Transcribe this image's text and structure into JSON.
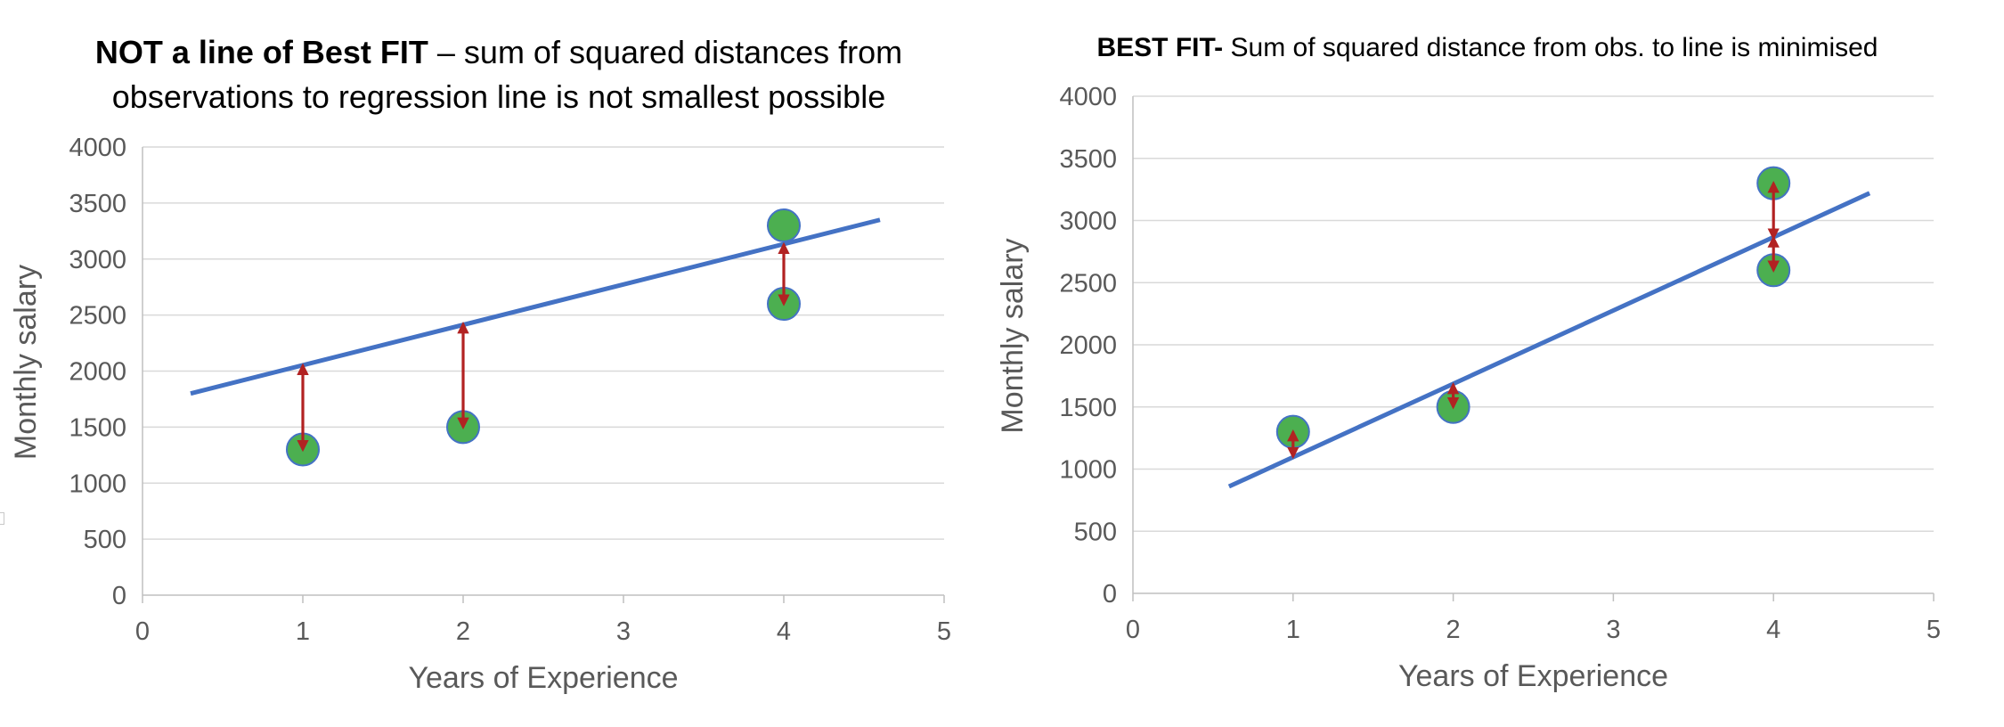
{
  "chart_data": [
    {
      "type": "scatter",
      "title_bold": "NOT a line of Best FIT",
      "title_rest": " – sum of squared distances from observations to regression line is not smallest possible",
      "xlabel": "Years of Experience",
      "ylabel": "Monthly salary",
      "xlim": [
        0,
        5
      ],
      "ylim": [
        0,
        4000
      ],
      "x_ticks": [
        0,
        1,
        2,
        3,
        4,
        5
      ],
      "y_ticks": [
        0,
        500,
        1000,
        1500,
        2000,
        2500,
        3000,
        3500,
        4000
      ],
      "grid": true,
      "points": [
        {
          "x": 1,
          "y": 1300
        },
        {
          "x": 2,
          "y": 1500
        },
        {
          "x": 4,
          "y": 3300
        },
        {
          "x": 4,
          "y": 2600
        }
      ],
      "line": {
        "x": [
          0.3,
          4.6
        ],
        "y": [
          1800,
          3350
        ]
      },
      "residuals": [
        {
          "x": 1,
          "y1": 1300,
          "y2": 2050
        },
        {
          "x": 2,
          "y1": 1500,
          "y2": 2420
        },
        {
          "x": 4,
          "y1": 2600,
          "y2": 3130
        }
      ],
      "colors": {
        "point": "#4CAF50",
        "point_edge": "#4472C4",
        "line": "#4472C4",
        "residual": "#B22222",
        "grid": "#d9d9d9",
        "axis": "#bfbfbf"
      }
    },
    {
      "type": "scatter",
      "title_bold": "BEST FIT-",
      "title_rest": " Sum of squared distance from obs. to line is minimised",
      "xlabel": "Years of Experience",
      "ylabel": "Monthly salary",
      "xlim": [
        0,
        5
      ],
      "ylim": [
        0,
        4000
      ],
      "x_ticks": [
        0,
        1,
        2,
        3,
        4,
        5
      ],
      "y_ticks": [
        0,
        500,
        1000,
        1500,
        2000,
        2500,
        3000,
        3500,
        4000
      ],
      "grid": true,
      "points": [
        {
          "x": 1,
          "y": 1300
        },
        {
          "x": 2,
          "y": 1500
        },
        {
          "x": 4,
          "y": 3300
        },
        {
          "x": 4,
          "y": 2600
        }
      ],
      "line": {
        "x": [
          0.6,
          4.6
        ],
        "y": [
          860,
          3220
        ]
      },
      "residuals": [
        {
          "x": 1,
          "y1": 1100,
          "y2": 1300
        },
        {
          "x": 2,
          "y1": 1500,
          "y2": 1680
        },
        {
          "x": 4,
          "y1": 2600,
          "y2": 2860
        },
        {
          "x": 4,
          "y1": 2860,
          "y2": 3300
        }
      ],
      "colors": {
        "point": "#4CAF50",
        "point_edge": "#4472C4",
        "line": "#4472C4",
        "residual": "#B22222",
        "grid": "#d9d9d9",
        "axis": "#bfbfbf"
      }
    }
  ]
}
